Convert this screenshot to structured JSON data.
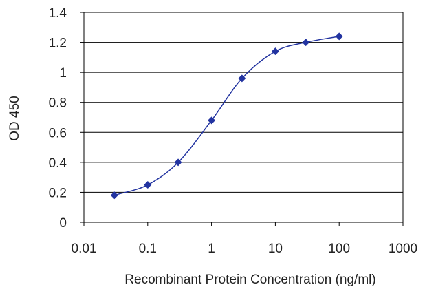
{
  "chart_data": {
    "type": "scatter",
    "title": "",
    "xlabel": "Recombinant Protein Concentration (ng/ml)",
    "ylabel": "OD 450",
    "x_scale": "log",
    "xlim": [
      0.01,
      1000
    ],
    "ylim": [
      0,
      1.4
    ],
    "x_ticks": [
      0.01,
      0.1,
      1,
      10,
      100,
      1000
    ],
    "x_tick_labels": [
      "0.01",
      "0.1",
      "1",
      "10",
      "100",
      "1000"
    ],
    "y_ticks": [
      0,
      0.2,
      0.4,
      0.6,
      0.8,
      1,
      1.2,
      1.4
    ],
    "y_tick_labels": [
      "0",
      "0.2",
      "0.4",
      "0.6",
      "0.8",
      "1",
      "1.2",
      "1.4"
    ],
    "grid": "horizontal",
    "legend": "none",
    "series": [
      {
        "x": [
          0.03,
          0.1,
          0.3,
          1,
          3,
          10,
          30,
          100
        ],
        "y": [
          0.18,
          0.25,
          0.4,
          0.68,
          0.96,
          1.14,
          1.2,
          1.24
        ],
        "color": "#2233a0",
        "marker": "diamond",
        "fit_curve": "sigmoid"
      }
    ]
  }
}
